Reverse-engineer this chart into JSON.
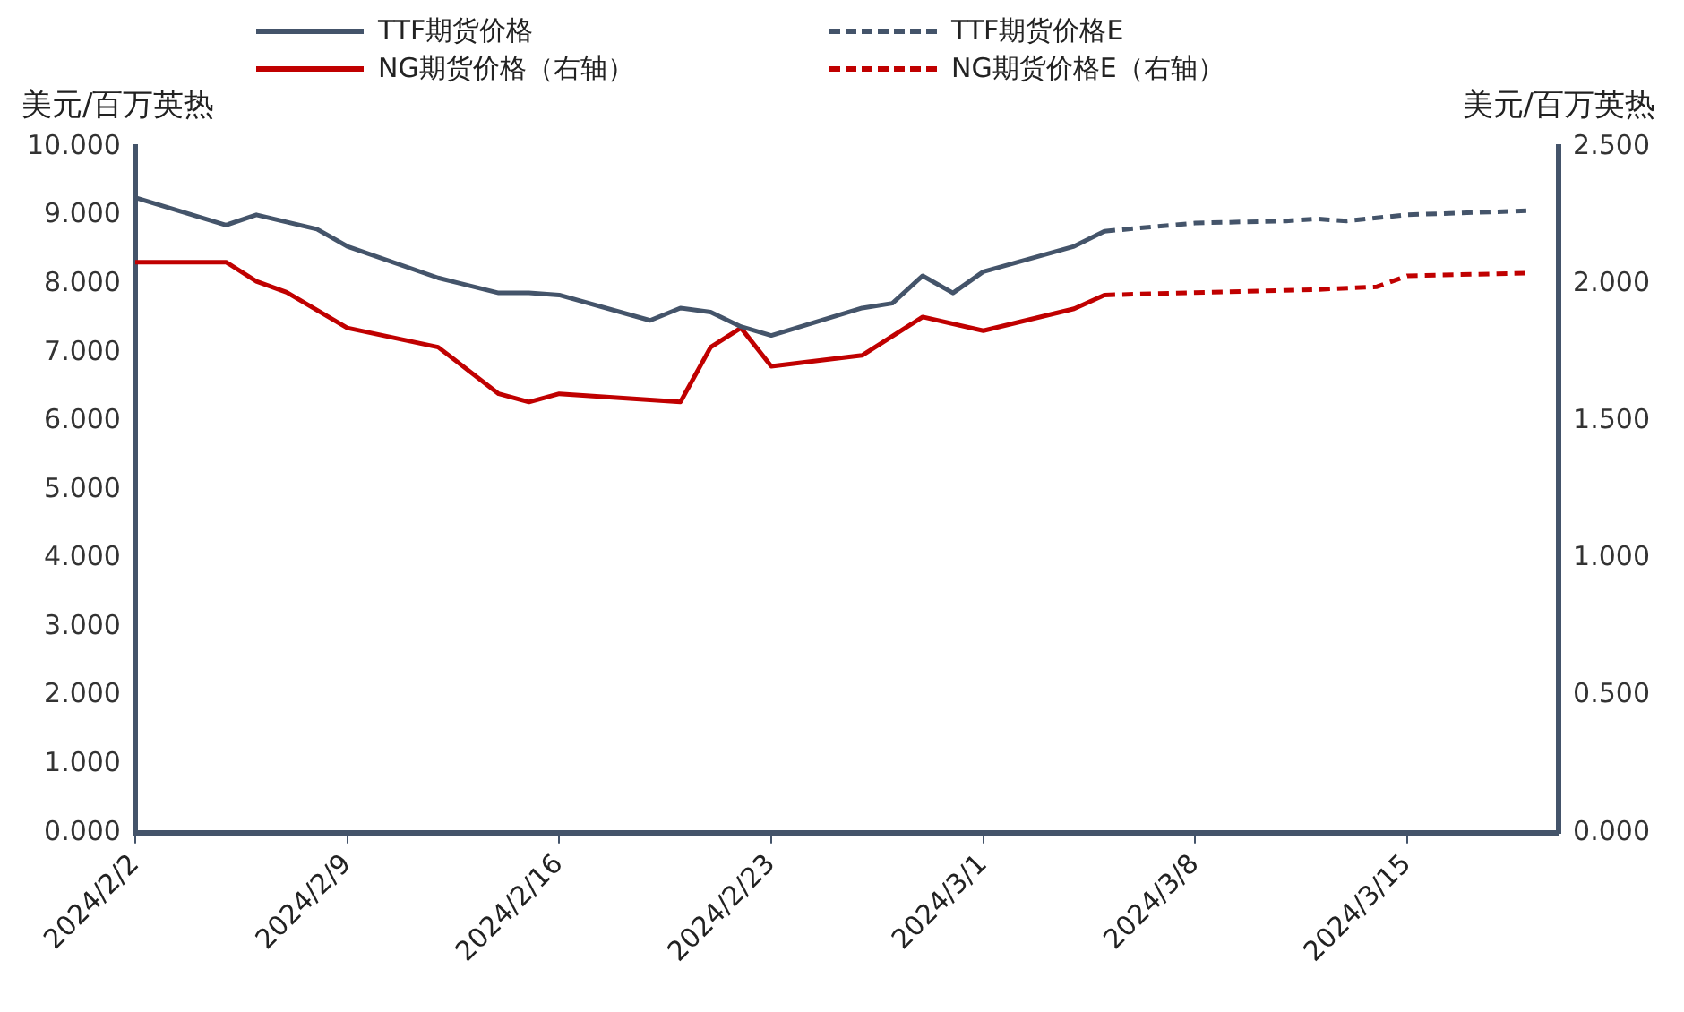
{
  "chart_data": {
    "type": "line",
    "ylabel": "美元/百万英热",
    "y2label": "美元/百万英热",
    "legend": "top",
    "grid": false,
    "xlim": [
      "2024-02-02",
      "2024-03-20"
    ],
    "xticks": [
      {
        "value": "2024-02-02",
        "label": "2024/2/2"
      },
      {
        "value": "2024-02-09",
        "label": "2024/2/9"
      },
      {
        "value": "2024-02-16",
        "label": "2024/2/16"
      },
      {
        "value": "2024-02-23",
        "label": "2024/2/23"
      },
      {
        "value": "2024-03-01",
        "label": "2024/3/1"
      },
      {
        "value": "2024-03-08",
        "label": "2024/3/8"
      },
      {
        "value": "2024-03-15",
        "label": "2024/3/15"
      }
    ],
    "ylim": [
      0,
      10
    ],
    "yticks": [
      {
        "value": 0,
        "label": "0.000"
      },
      {
        "value": 1,
        "label": "1.000"
      },
      {
        "value": 2,
        "label": "2.000"
      },
      {
        "value": 3,
        "label": "3.000"
      },
      {
        "value": 4,
        "label": "4.000"
      },
      {
        "value": 5,
        "label": "5.000"
      },
      {
        "value": 6,
        "label": "6.000"
      },
      {
        "value": 7,
        "label": "7.000"
      },
      {
        "value": 8,
        "label": "8.000"
      },
      {
        "value": 9,
        "label": "9.000"
      },
      {
        "value": 10,
        "label": "10.000"
      }
    ],
    "y2lim": [
      0,
      2.5
    ],
    "y2ticks": [
      {
        "value": 0,
        "label": "0.000"
      },
      {
        "value": 0.5,
        "label": "0.500"
      },
      {
        "value": 1,
        "label": "1.000"
      },
      {
        "value": 1.5,
        "label": "1.500"
      },
      {
        "value": 2,
        "label": "2.000"
      },
      {
        "value": 2.5,
        "label": "2.500"
      }
    ],
    "series": [
      {
        "name": "TTF期货价格",
        "color": "#44546a",
        "line_style": "solid",
        "x": [
          "2024-02-02",
          "2024-02-05",
          "2024-02-06",
          "2024-02-08",
          "2024-02-09",
          "2024-02-12",
          "2024-02-14",
          "2024-02-15",
          "2024-02-16",
          "2024-02-19",
          "2024-02-20",
          "2024-02-21",
          "2024-02-22",
          "2024-02-23",
          "2024-02-26",
          "2024-02-27",
          "2024-02-28",
          "2024-02-29",
          "2024-03-01",
          "2024-03-04",
          "2024-03-05"
        ],
        "values": [
          9.26,
          8.86,
          9.01,
          8.8,
          8.55,
          8.09,
          7.87,
          7.87,
          7.84,
          7.47,
          7.65,
          7.59,
          7.38,
          7.25,
          7.65,
          7.72,
          8.12,
          7.87,
          8.18,
          8.55,
          8.77
        ]
      },
      {
        "name": "TTF期货价格E",
        "color": "#44546a",
        "line_style": "dashed",
        "x": [
          "2024-03-05",
          "2024-03-08",
          "2024-03-11",
          "2024-03-12",
          "2024-03-13",
          "2024-03-15",
          "2024-03-19"
        ],
        "values": [
          8.77,
          8.89,
          8.92,
          8.95,
          8.92,
          9.01,
          9.07
        ]
      },
      {
        "name": "NG期货价格（右轴）",
        "color": "#c00000",
        "line_style": "solid",
        "axis": "y2",
        "x": [
          "2024-02-02",
          "2024-02-05",
          "2024-02-06",
          "2024-02-07",
          "2024-02-09",
          "2024-02-12",
          "2024-02-14",
          "2024-02-15",
          "2024-02-16",
          "2024-02-20",
          "2024-02-21",
          "2024-02-22",
          "2024-02-23",
          "2024-02-26",
          "2024-02-28",
          "2024-03-01",
          "2024-03-04",
          "2024-03-05"
        ],
        "values": [
          2.08,
          2.08,
          2.01,
          1.97,
          1.84,
          1.77,
          1.6,
          1.57,
          1.6,
          1.57,
          1.77,
          1.84,
          1.7,
          1.74,
          1.88,
          1.83,
          1.91,
          1.96
        ]
      },
      {
        "name": "NG期货价格E（右轴）",
        "color": "#c00000",
        "line_style": "dashed",
        "axis": "y2",
        "x": [
          "2024-03-05",
          "2024-03-12",
          "2024-03-14",
          "2024-03-15",
          "2024-03-19"
        ],
        "values": [
          1.96,
          1.98,
          1.99,
          2.03,
          2.04
        ]
      }
    ]
  }
}
